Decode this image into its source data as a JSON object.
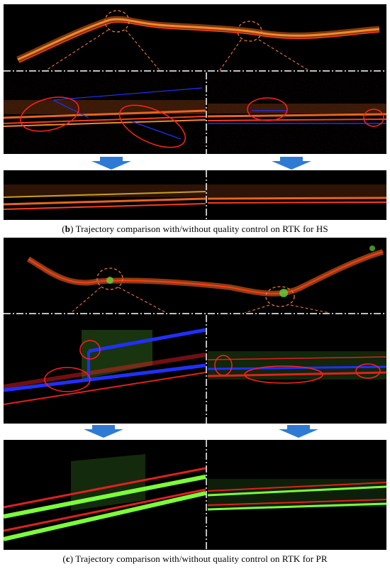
{
  "figure": {
    "panel_b": {
      "label": "b",
      "caption": "Trajectory comparison with/without quality control on RTK for HS"
    },
    "panel_c": {
      "label": "c",
      "caption": "Trajectory comparison with/without quality control on RTK for PR"
    },
    "colors": {
      "background": "#000000",
      "points_orange": "#e8641e",
      "points_red": "#e02020",
      "points_green": "#5fd23a",
      "trajectory_blue": "#2030ff",
      "trajectory_green": "#7cff3a",
      "highlight_circle": "#ff2020",
      "zoom_lines": "#e87a3a",
      "divider": "#ffffff",
      "arrow": "#2e7bd6"
    }
  }
}
